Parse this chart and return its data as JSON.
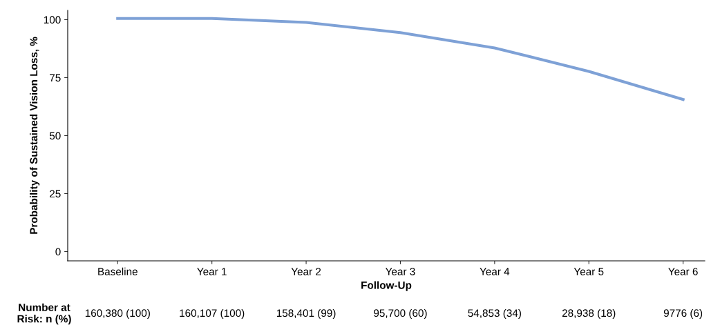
{
  "chart_data": {
    "type": "line",
    "xlabel": "Follow-Up",
    "ylabel": "Probability of Sustained Vision Loss, %",
    "categories": [
      "Baseline",
      "Year 1",
      "Year 2",
      "Year 3",
      "Year 4",
      "Year 5",
      "Year 6"
    ],
    "series": [
      {
        "color": "#7ea1d6",
        "values": [
          100.5,
          100.5,
          98.8,
          94.4,
          87.8,
          77.7,
          65.6
        ]
      }
    ],
    "ylim": [
      -4,
      104
    ],
    "yticks": [
      0,
      25,
      50,
      75,
      100
    ],
    "grid": false,
    "legend": false,
    "marker": "none",
    "line_style": "solid",
    "annotations": [
      "Number at\nRisk: n (%)",
      "160,380 (100)",
      "160,107 (100)",
      "158,401 (99)",
      "95,700 (60)",
      "54,853 (34)",
      "28,938 (18)",
      "9776 (6)"
    ]
  }
}
